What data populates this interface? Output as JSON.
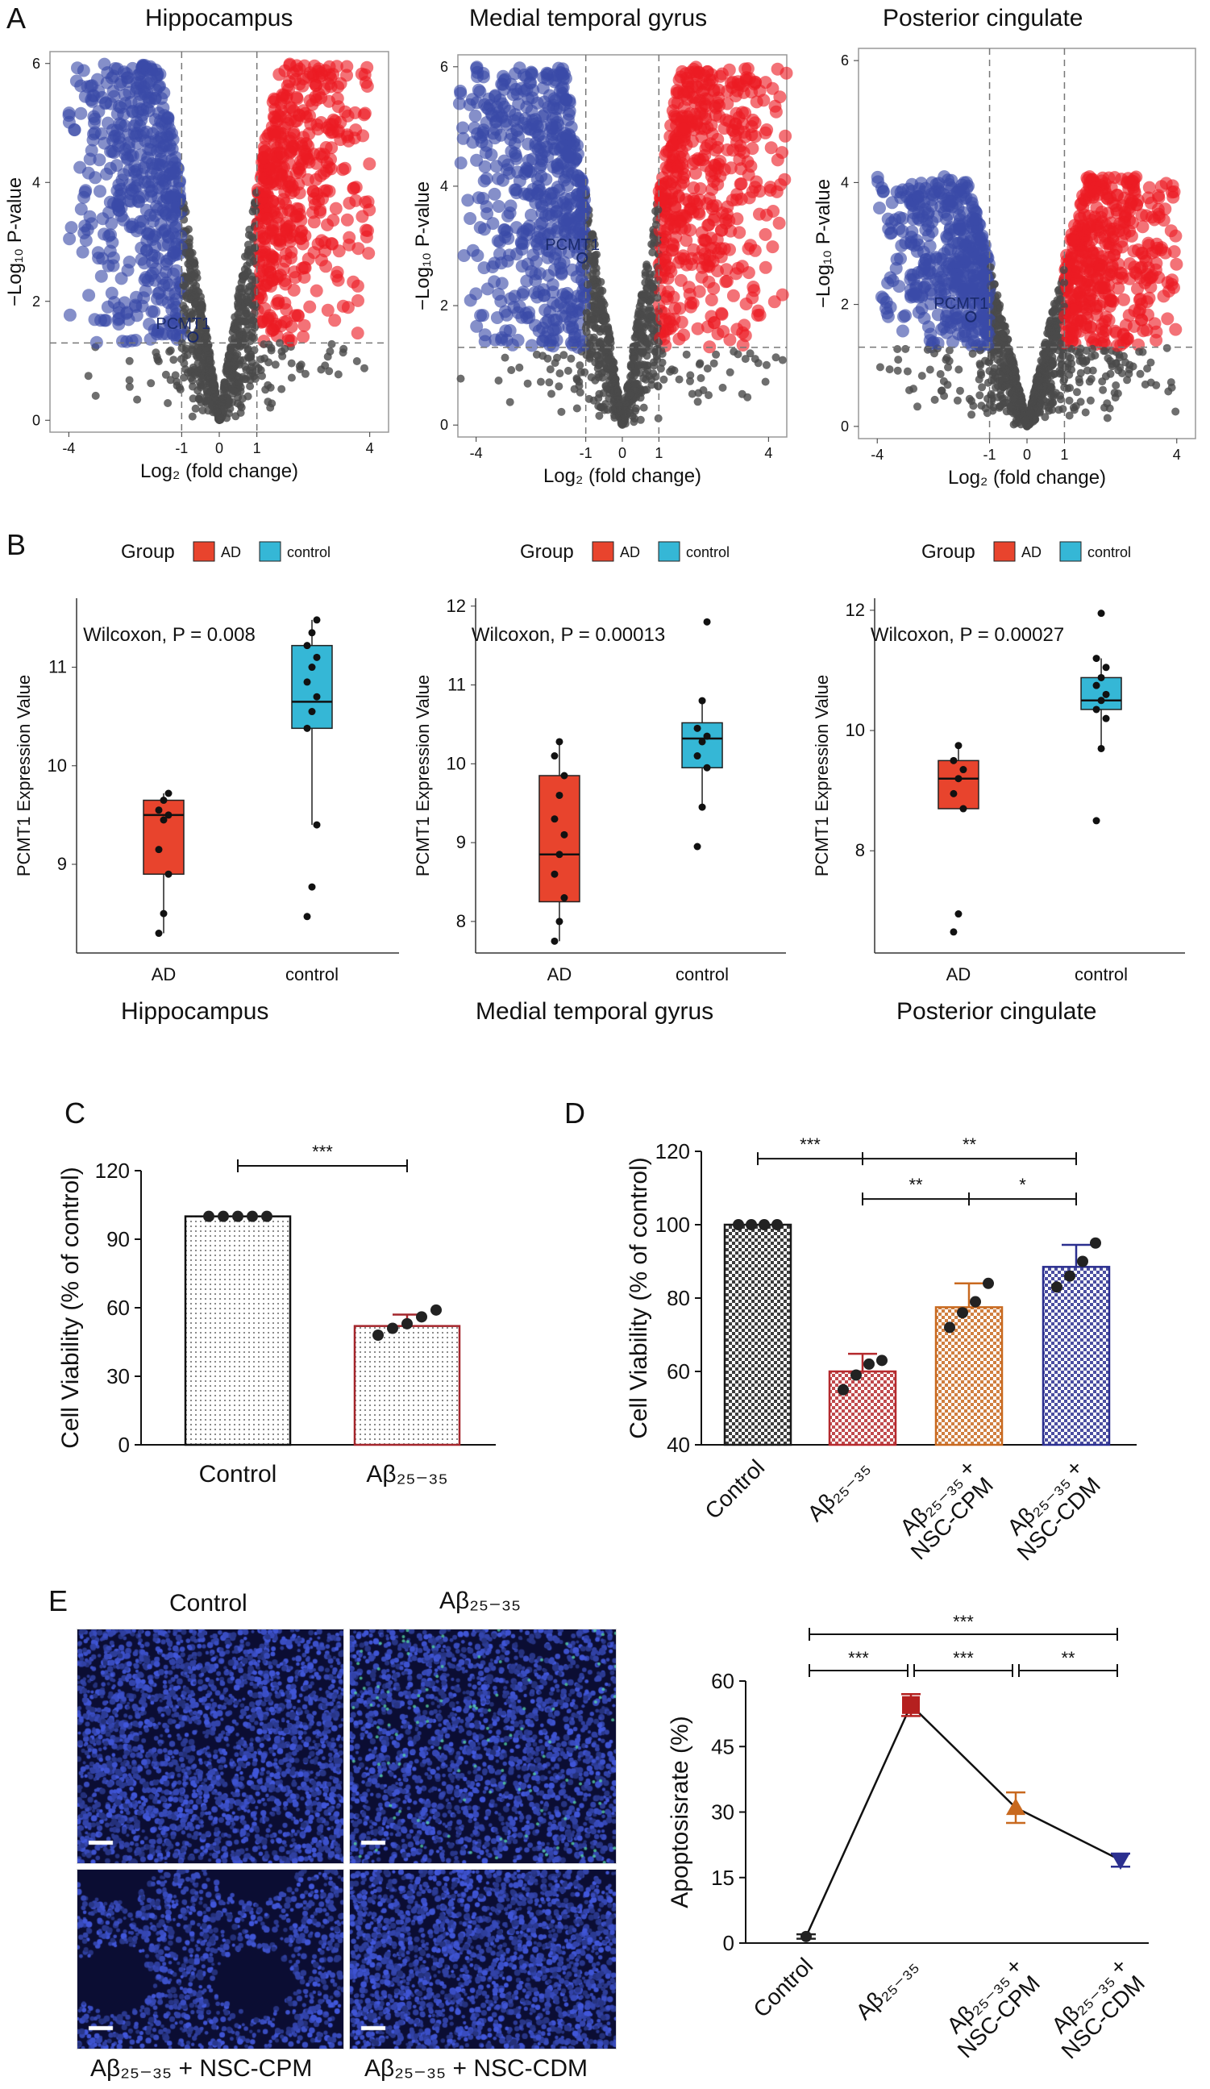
{
  "figure": {
    "panel_labels": [
      "A",
      "B",
      "C",
      "D",
      "E"
    ],
    "colors": {
      "ad": "#e8442d",
      "control": "#35b7d6",
      "up": "#ec1c24",
      "down": "#3a4aa8",
      "ns": "#4a4a4a"
    },
    "panel_a": {
      "titles": [
        "Hippocampus",
        "Medial temporal gyrus",
        "Posterior cingulate"
      ],
      "gene_label": "PCMT1",
      "xlabel": "Log₂ (fold change)",
      "ylabel": "−Log₁₀ P-value"
    },
    "panel_b": {
      "legend_title": "Group",
      "legend_items": [
        "AD",
        "control"
      ],
      "ylabel": "PCMT1 Expression Value",
      "region_labels": [
        "Hippocampus",
        "Medial temporal gyrus",
        "Posterior cingulate"
      ]
    },
    "panel_e": {
      "image_labels": [
        "Control",
        "Aβ₂₅₋₃₅",
        "Aβ₂₅₋₃₅ + NSC-CPM",
        "Aβ₂₅₋₃₅ + NSC-CDM"
      ]
    }
  },
  "chart_data": [
    {
      "id": "A1",
      "type": "scatter",
      "title": "Hippocampus",
      "xlabel": "Log₂ (fold change)",
      "ylabel": "−Log₁₀ P-value",
      "xlim": [
        -4.5,
        4.5
      ],
      "ylim": [
        -0.2,
        6.2
      ],
      "xticks": [
        -4,
        -1,
        0,
        1,
        4
      ],
      "yticks": [
        0,
        2,
        4,
        6
      ],
      "thresholds": {
        "fc": 1,
        "p": 1.3
      },
      "max_abs_fc": 4,
      "max_p": 6,
      "annotation": {
        "text": "PCMT1",
        "x": -0.7,
        "y": 1.4
      }
    },
    {
      "id": "A2",
      "type": "scatter",
      "title": "Medial temporal gyrus",
      "xlabel": "Log₂ (fold change)",
      "ylabel": "−Log₁₀ P-value",
      "xlim": [
        -4.5,
        4.5
      ],
      "ylim": [
        -0.2,
        6.2
      ],
      "xticks": [
        -4,
        -1,
        0,
        1,
        4
      ],
      "yticks": [
        0,
        2,
        4,
        6
      ],
      "thresholds": {
        "fc": 1,
        "p": 1.3
      },
      "max_abs_fc": 4.5,
      "max_p": 6,
      "annotation": {
        "text": "PCMT1",
        "x": -1.1,
        "y": 2.8
      }
    },
    {
      "id": "A3",
      "type": "scatter",
      "title": "Posterior cingulate",
      "xlabel": "Log₂ (fold change)",
      "ylabel": "−Log₁₀ P-value",
      "xlim": [
        -4.5,
        4.5
      ],
      "ylim": [
        -0.2,
        6.2
      ],
      "xticks": [
        -4,
        -1,
        0,
        1,
        4
      ],
      "yticks": [
        0,
        2,
        4,
        6
      ],
      "thresholds": {
        "fc": 1,
        "p": 1.3
      },
      "max_abs_fc": 4,
      "max_p": 4.1,
      "annotation": {
        "text": "PCMT1",
        "x": -1.5,
        "y": 1.8
      }
    },
    {
      "id": "B1",
      "type": "box",
      "title": "Hippocampus",
      "annotation": "Wilcoxon, P = 0.008",
      "ylabel": "PCMT1 Expression Value",
      "categories": [
        "AD",
        "control"
      ],
      "ylim": [
        8.1,
        11.7
      ],
      "yticks": [
        9,
        10,
        11
      ],
      "boxes": [
        {
          "whisker_low": 8.3,
          "q1": 8.9,
          "median": 9.5,
          "q3": 9.65,
          "whisker_high": 9.72,
          "points": [
            8.3,
            8.5,
            8.9,
            9.15,
            9.45,
            9.5,
            9.55,
            9.65,
            9.72
          ]
        },
        {
          "whisker_low": 9.4,
          "q1": 10.38,
          "median": 10.65,
          "q3": 11.22,
          "whisker_high": 11.48,
          "points": [
            8.47,
            8.77,
            9.4,
            10.38,
            10.55,
            10.7,
            10.85,
            11.0,
            11.1,
            11.22,
            11.35,
            11.48
          ]
        }
      ]
    },
    {
      "id": "B2",
      "type": "box",
      "title": "Medial temporal gyrus",
      "annotation": "Wilcoxon, P = 0.00013",
      "ylabel": "PCMT1 Expression Value",
      "categories": [
        "AD",
        "control"
      ],
      "ylim": [
        7.6,
        12.1
      ],
      "yticks": [
        8,
        9,
        10,
        11,
        12
      ],
      "boxes": [
        {
          "whisker_low": 7.75,
          "q1": 8.25,
          "median": 8.85,
          "q3": 9.85,
          "whisker_high": 10.28,
          "points": [
            7.75,
            8.0,
            8.3,
            8.6,
            8.85,
            9.1,
            9.3,
            9.6,
            9.85,
            10.1,
            10.28
          ]
        },
        {
          "whisker_low": 9.45,
          "q1": 9.95,
          "median": 10.32,
          "q3": 10.52,
          "whisker_high": 10.8,
          "points": [
            8.95,
            9.45,
            9.95,
            10.1,
            10.28,
            10.35,
            10.45,
            10.8,
            11.8
          ]
        }
      ]
    },
    {
      "id": "B3",
      "type": "box",
      "title": "Posterior cingulate",
      "annotation": "Wilcoxon, P = 0.00027",
      "ylabel": "PCMT1 Expression Value",
      "categories": [
        "AD",
        "control"
      ],
      "ylim": [
        6.3,
        12.2
      ],
      "yticks": [
        8,
        10,
        12
      ],
      "boxes": [
        {
          "whisker_low": 8.7,
          "q1": 8.7,
          "median": 9.2,
          "q3": 9.5,
          "whisker_high": 9.75,
          "points": [
            6.65,
            6.95,
            8.7,
            8.95,
            9.2,
            9.35,
            9.5,
            9.75
          ]
        },
        {
          "whisker_low": 9.7,
          "q1": 10.35,
          "median": 10.5,
          "q3": 10.88,
          "whisker_high": 11.2,
          "points": [
            8.5,
            9.7,
            10.2,
            10.35,
            10.5,
            10.6,
            10.75,
            10.88,
            11.05,
            11.2,
            11.95
          ]
        }
      ]
    },
    {
      "id": "C",
      "type": "bar",
      "ylabel": "Cell Viability (% of control)",
      "categories": [
        "Control",
        "Aβ₂₅₋₃₅"
      ],
      "values": [
        100,
        52
      ],
      "errors": [
        0,
        5
      ],
      "points": [
        [
          100,
          100,
          100,
          100,
          100
        ],
        [
          48,
          51,
          53,
          56,
          59
        ]
      ],
      "ylim": [
        0,
        120
      ],
      "yticks": [
        0,
        30,
        60,
        90,
        120
      ],
      "significance": [
        {
          "from": 0,
          "to": 1,
          "label": "***"
        }
      ]
    },
    {
      "id": "D",
      "type": "bar",
      "ylabel": "Cell Viability (% of control)",
      "categories": [
        "Control",
        "Aβ₂₅₋₃₅",
        "Aβ₂₅₋₃₅ +\nNSC-CPM",
        "Aβ₂₅₋₃₅ +\nNSC-CDM"
      ],
      "values": [
        100,
        60,
        77.5,
        88.5
      ],
      "errors": [
        0,
        4.8,
        6.5,
        6
      ],
      "points": [
        [
          100,
          100,
          100,
          100
        ],
        [
          55,
          59,
          62,
          63
        ],
        [
          72,
          76,
          79,
          84
        ],
        [
          83,
          86,
          90,
          95
        ]
      ],
      "ylim": [
        40,
        120
      ],
      "yticks": [
        40,
        60,
        80,
        100,
        120
      ],
      "significance": [
        {
          "from": 0,
          "to": 1,
          "label": "***",
          "level": 118
        },
        {
          "from": 1,
          "to": 3,
          "label": "**",
          "level": 118
        },
        {
          "from": 1,
          "to": 2,
          "label": "**",
          "level": 107
        },
        {
          "from": 2,
          "to": 3,
          "label": "*",
          "level": 107
        }
      ]
    },
    {
      "id": "E",
      "type": "line",
      "ylabel": "Apoptosisrate (%)",
      "categories": [
        "Control",
        "Aβ₂₅₋₃₅",
        "Aβ₂₅₋₃₅ +\nNSC-CPM",
        "Aβ₂₅₋₃₅ +\nNSC-CDM"
      ],
      "values": [
        1.5,
        54.5,
        31,
        19
      ],
      "errors": [
        0.5,
        2.5,
        3.5,
        1.5
      ],
      "markers": [
        "circle",
        "square",
        "triangle-up",
        "triangle-down"
      ],
      "ylim": [
        0,
        60
      ],
      "yticks": [
        0,
        15,
        30,
        45,
        60
      ],
      "significance": [
        {
          "from": 0,
          "to": 3,
          "label": "***",
          "row": 0
        },
        {
          "from": 0,
          "to": 1,
          "label": "***",
          "row": 1
        },
        {
          "from": 1,
          "to": 2,
          "label": "***",
          "row": 1
        },
        {
          "from": 2,
          "to": 3,
          "label": "**",
          "row": 1
        }
      ]
    }
  ]
}
